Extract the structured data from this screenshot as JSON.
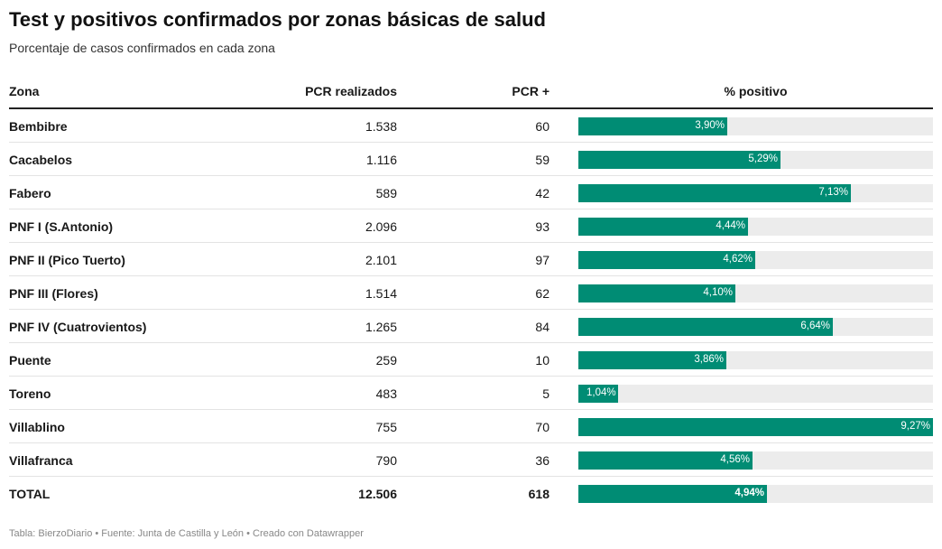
{
  "title": "Test y positivos confirmados por zonas básicas de salud",
  "subtitle": "Porcentaje de casos confirmados en cada zona",
  "headers": {
    "zona": "Zona",
    "pcr": "PCR realizados",
    "positivos": "PCR +",
    "pct": "% positivo"
  },
  "footer": "Tabla: BierzoDiario • Fuente: Junta de Castilla y León • Creado con Datawrapper",
  "colors": {
    "bar": "#008c74",
    "track": "#ececec"
  },
  "chart_data": {
    "type": "table",
    "columns": [
      "Zona",
      "PCR realizados",
      "PCR +",
      "% positivo"
    ],
    "bar_max": 9.27,
    "rows": [
      {
        "zona": "Bembibre",
        "pcr": "1.538",
        "positivos": "60",
        "pct": 3.9,
        "pct_label": "3,90%"
      },
      {
        "zona": "Cacabelos",
        "pcr": "1.116",
        "positivos": "59",
        "pct": 5.29,
        "pct_label": "5,29%"
      },
      {
        "zona": "Fabero",
        "pcr": "589",
        "positivos": "42",
        "pct": 7.13,
        "pct_label": "7,13%"
      },
      {
        "zona": "PNF I (S.Antonio)",
        "pcr": "2.096",
        "positivos": "93",
        "pct": 4.44,
        "pct_label": "4,44%"
      },
      {
        "zona": "PNF II (Pico Tuerto)",
        "pcr": "2.101",
        "positivos": "97",
        "pct": 4.62,
        "pct_label": "4,62%"
      },
      {
        "zona": "PNF III (Flores)",
        "pcr": "1.514",
        "positivos": "62",
        "pct": 4.1,
        "pct_label": "4,10%"
      },
      {
        "zona": "PNF IV (Cuatrovientos)",
        "pcr": "1.265",
        "positivos": "84",
        "pct": 6.64,
        "pct_label": "6,64%"
      },
      {
        "zona": "Puente",
        "pcr": "259",
        "positivos": "10",
        "pct": 3.86,
        "pct_label": "3,86%"
      },
      {
        "zona": "Toreno",
        "pcr": "483",
        "positivos": "5",
        "pct": 1.04,
        "pct_label": "1,04%"
      },
      {
        "zona": "Villablino",
        "pcr": "755",
        "positivos": "70",
        "pct": 9.27,
        "pct_label": "9,27%"
      },
      {
        "zona": "Villafranca",
        "pcr": "790",
        "positivos": "36",
        "pct": 4.56,
        "pct_label": "4,56%"
      },
      {
        "zona": "TOTAL",
        "pcr": "12.506",
        "positivos": "618",
        "pct": 4.94,
        "pct_label": "4,94%",
        "total": true
      }
    ]
  }
}
